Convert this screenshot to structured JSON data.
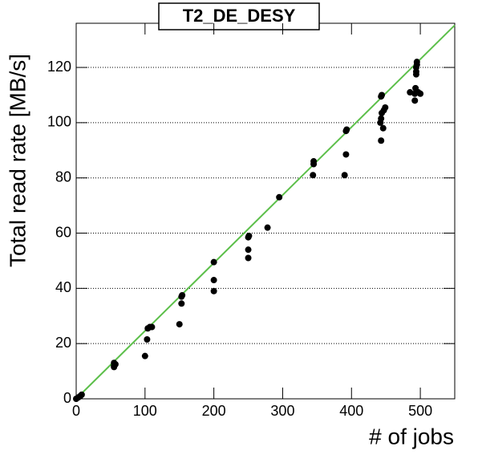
{
  "chart_data": {
    "type": "scatter",
    "title": "T2_DE_DESY",
    "xlabel": "# of jobs",
    "ylabel": "Total read rate [MB/s]",
    "xlim": [
      0,
      550
    ],
    "ylim": [
      0,
      136
    ],
    "xticks": [
      0,
      100,
      200,
      300,
      400,
      500
    ],
    "yticks": [
      0,
      20,
      40,
      60,
      80,
      100,
      120
    ],
    "grid": true,
    "series": [
      {
        "color": "#000000",
        "x": [
          0,
          3,
          6,
          8,
          55,
          55,
          57,
          55,
          100,
          103,
          104,
          107,
          110,
          150,
          153,
          153,
          154,
          200,
          200,
          200,
          250,
          250,
          250,
          251,
          278,
          295,
          344,
          345,
          345,
          390,
          392,
          392,
          393,
          443,
          442,
          443,
          444,
          446,
          447,
          449,
          443,
          444,
          485,
          492,
          492,
          493,
          494,
          494,
          494,
          495,
          495,
          497,
          500
        ],
        "values": [
          0,
          0.5,
          1,
          1.5,
          13,
          12,
          12.5,
          11.5,
          15.5,
          21.5,
          25.5,
          26,
          26,
          27,
          34.5,
          37,
          37.5,
          39,
          43,
          49.5,
          51,
          54,
          58.5,
          59,
          62,
          73,
          81,
          85,
          86,
          81,
          88.5,
          97,
          97.5,
          93.5,
          100,
          101.5,
          103.5,
          98,
          104.5,
          105.5,
          109.5,
          110,
          111,
          108,
          110.5,
          112.5,
          117.5,
          118.5,
          120,
          121,
          122,
          111,
          110.5
        ]
      }
    ],
    "fit": {
      "color": "#5cbf4a",
      "x": [
        0,
        550
      ],
      "values": [
        0,
        135.3
      ]
    }
  }
}
